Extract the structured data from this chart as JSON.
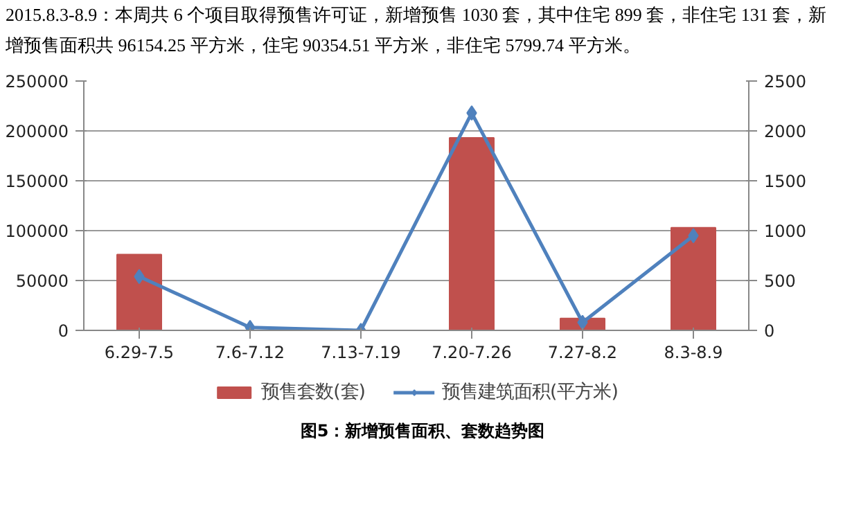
{
  "chart_data": {
    "type": "bar",
    "title": "2015.8.3-8.9：本周共 6 个项目取得预售许可证，新增预售 1030 套，其中住宅 899 套，非住宅 131 套，新增预售面积共 96154.25 平方米，住宅 90354.51 平方米，非住宅 5799.74 平方米。",
    "categories": [
      "6.29-7.5",
      "7.6-7.12",
      "7.13-7.19",
      "7.20-7.26",
      "7.27-8.2",
      "8.3-8.9"
    ],
    "series": [
      {
        "name": "预售套数(套)",
        "color": "#c0504d",
        "values": [
          76000,
          0,
          0,
          193000,
          12000,
          103000
        ]
      },
      {
        "name": "预售建筑面积(平方米)",
        "type": "line",
        "axis": "y2",
        "color": "#4f81bd",
        "marker": "diamond",
        "values": [
          540,
          30,
          0,
          2180,
          80,
          950
        ]
      }
    ],
    "ylim": [
      0,
      250000
    ],
    "yticks": [
      0,
      50000,
      100000,
      150000,
      200000,
      250000
    ],
    "y2lim": [
      0,
      2500
    ],
    "y2ticks": [
      0,
      500,
      1000,
      1500,
      2000,
      2500
    ],
    "grid": "y",
    "legend": "bottom",
    "annotations": [
      "图5：新增预售面积、套数趋势图"
    ]
  }
}
